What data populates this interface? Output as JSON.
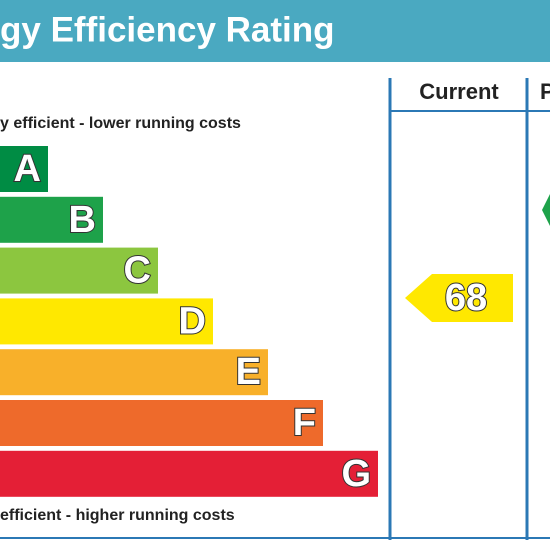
{
  "header": {
    "title": "gy Efficiency Rating"
  },
  "columns": [
    "Current",
    "P"
  ],
  "top_note": "y efficient - lower running costs",
  "bottom_note": "efficient - higher running costs",
  "bands": [
    {
      "letter": "A",
      "color": "#008c44"
    },
    {
      "letter": "B",
      "color": "#1ea24a"
    },
    {
      "letter": "C",
      "color": "#8cc63f"
    },
    {
      "letter": "D",
      "color": "#ffe800"
    },
    {
      "letter": "E",
      "color": "#f8b02a"
    },
    {
      "letter": "F",
      "color": "#ee6a2b"
    },
    {
      "letter": "G",
      "color": "#e41f36"
    }
  ],
  "current": {
    "rating": 68,
    "color": "#ffe800"
  },
  "potential": {
    "color": "#1ea24a"
  }
}
